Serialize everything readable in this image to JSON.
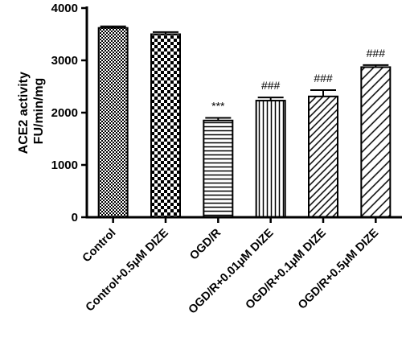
{
  "chart_data": {
    "type": "bar",
    "ylabel_line1": "ACE2 activity",
    "ylabel_line2": "FU/min/mg",
    "xlabel": "",
    "ylim": [
      0,
      4000
    ],
    "yticks": [
      0,
      1000,
      2000,
      3000,
      4000
    ],
    "categories": [
      "Control",
      "Control+0.5μM DIZE",
      "OGD/R",
      "OGD/R+0.01μM DIZE",
      "OGD/R+0.1μM DIZE",
      "OGD/R+0.5μM DIZE"
    ],
    "values": [
      3620,
      3500,
      1850,
      2230,
      2310,
      2870
    ],
    "errors": [
      30,
      40,
      50,
      60,
      120,
      40
    ],
    "annotations": [
      "",
      "",
      "***",
      "###",
      "###",
      "###"
    ],
    "patterns": [
      "dense-checker",
      "checker",
      "horizontal-lines",
      "vertical-lines",
      "diagonal-lines",
      "diagonal-lines-wide"
    ],
    "legend": "none",
    "grid": false
  }
}
